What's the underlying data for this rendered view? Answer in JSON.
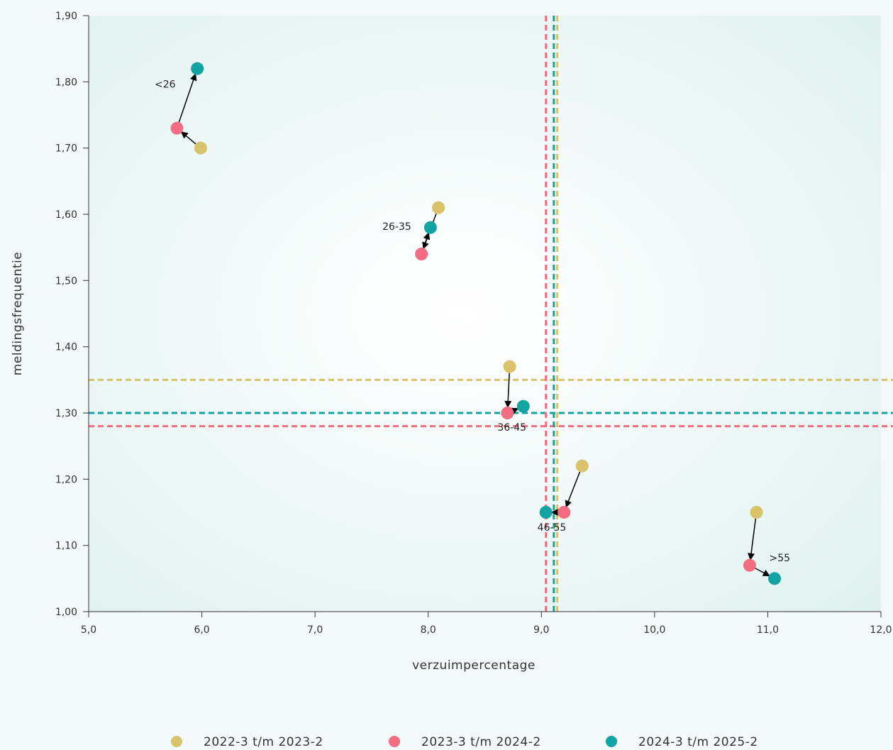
{
  "chart_data": {
    "type": "scatter",
    "title": "",
    "xlabel": "verzuimpercentage",
    "ylabel": "meldingsfrequentie",
    "xlim": [
      5.0,
      12.0
    ],
    "ylim": [
      1.0,
      1.9
    ],
    "x_ticks": [
      5,
      6,
      7,
      8,
      9,
      10,
      11,
      12
    ],
    "x_tick_labels": [
      "5,0",
      "6,0",
      "7,0",
      "8,0",
      "9,0",
      "10,0",
      "11,0",
      "12,0"
    ],
    "y_ticks": [
      1.0,
      1.1,
      1.2,
      1.3,
      1.4,
      1.5,
      1.6,
      1.7,
      1.8,
      1.9
    ],
    "y_tick_labels": [
      "1,00",
      "1,10",
      "1,20",
      "1,30",
      "1,40",
      "1,50",
      "1,60",
      "1,70",
      "1,80",
      "1,90"
    ],
    "grid": false,
    "legend_position": "bottom",
    "groups": [
      "<26",
      "26-35",
      "36-45",
      "46-55",
      ">55"
    ],
    "series": [
      {
        "name": "2022-3 t/m 2023-2",
        "color": "#d8c26a",
        "points": [
          {
            "group": "<26",
            "x": 5.99,
            "y": 1.7
          },
          {
            "group": "26-35",
            "x": 8.09,
            "y": 1.61
          },
          {
            "group": "36-45",
            "x": 8.72,
            "y": 1.37
          },
          {
            "group": "46-55",
            "x": 9.36,
            "y": 1.22
          },
          {
            "group": ">55",
            "x": 10.9,
            "y": 1.15
          }
        ],
        "mean_x": 9.14,
        "mean_y": 1.35
      },
      {
        "name": "2023-3 t/m 2024-2",
        "color": "#f26d82",
        "points": [
          {
            "group": "<26",
            "x": 5.78,
            "y": 1.73
          },
          {
            "group": "26-35",
            "x": 7.94,
            "y": 1.54
          },
          {
            "group": "36-45",
            "x": 8.7,
            "y": 1.3
          },
          {
            "group": "46-55",
            "x": 9.2,
            "y": 1.15
          },
          {
            "group": ">55",
            "x": 10.84,
            "y": 1.07
          }
        ],
        "mean_x": 9.04,
        "mean_y": 1.28
      },
      {
        "name": "2024-3 t/m 2025-2",
        "color": "#12a3a3",
        "points": [
          {
            "group": "<26",
            "x": 5.96,
            "y": 1.82
          },
          {
            "group": "26-35",
            "x": 8.02,
            "y": 1.58
          },
          {
            "group": "36-45",
            "x": 8.84,
            "y": 1.31
          },
          {
            "group": "46-55",
            "x": 9.04,
            "y": 1.15
          },
          {
            "group": ">55",
            "x": 11.06,
            "y": 1.05
          }
        ],
        "mean_x": 9.11,
        "mean_y": 1.3
      }
    ],
    "point_labels": [
      {
        "text": "<26",
        "group": "<26"
      },
      {
        "text": "26-35",
        "group": "26-35"
      },
      {
        "text": "36-45",
        "group": "36-45"
      },
      {
        "text": "46-55",
        "group": "46-55"
      },
      {
        "text": ">55",
        "group": ">55"
      }
    ]
  }
}
